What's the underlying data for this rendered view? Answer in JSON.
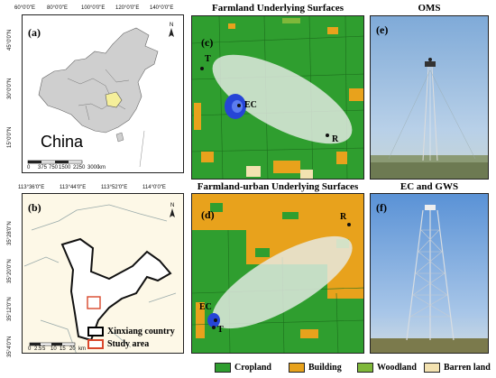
{
  "panels": {
    "a": {
      "label": "(a)",
      "country": "China",
      "lon_ticks": [
        "60°0'0\"E",
        "80°0'0\"E",
        "100°0'0\"E",
        "120°0'0\"E",
        "140°0'0\"E"
      ],
      "lat_ticks": [
        "45°0'0\"N",
        "30°0'0\"N",
        "15°0'0\"N"
      ],
      "scale": [
        "0",
        "375",
        "750",
        "1500",
        "2250",
        "3000"
      ],
      "scale_unit": "km"
    },
    "b": {
      "label": "(b)",
      "lon_ticks": [
        "113°36'0\"E",
        "113°44'0\"E",
        "113°52'0\"E",
        "114°0'0\"E"
      ],
      "lat_ticks": [
        "35°28'0\"N",
        "35°20'0\"N",
        "35°12'0\"N",
        "35°4'0\"N"
      ],
      "scale": [
        "0",
        "2.5",
        "5",
        "10",
        "15",
        "20"
      ],
      "scale_unit": "km",
      "legend": [
        {
          "label": "Xinxiang country",
          "color": "#000000"
        },
        {
          "label": "Study area",
          "color": "#d9472b"
        }
      ]
    },
    "c": {
      "label": "(c)",
      "title": "Farmland Underlying Surfaces",
      "points": [
        "T",
        "EC",
        "R"
      ]
    },
    "d": {
      "label": "(d)",
      "title": "Farmland-urban Underlying Surfaces",
      "points": [
        "R",
        "EC",
        "T"
      ]
    },
    "e": {
      "label": "(e)",
      "title": "OMS"
    },
    "f": {
      "label": "(f)",
      "title": "EC and GWS"
    }
  },
  "legend": [
    {
      "label": "Cropland",
      "color": "#2f9e2f"
    },
    {
      "label": "Building",
      "color": "#e8a21c"
    },
    {
      "label": "Woodland",
      "color": "#7fb83a"
    },
    {
      "label": "Barren land",
      "color": "#f3e2b0"
    }
  ],
  "colors": {
    "cropland": "#2f9e2f",
    "building": "#e8a21c",
    "henan": "#f5ef9a",
    "study_box": "#d9472b",
    "sky": "#8fb6dc"
  }
}
